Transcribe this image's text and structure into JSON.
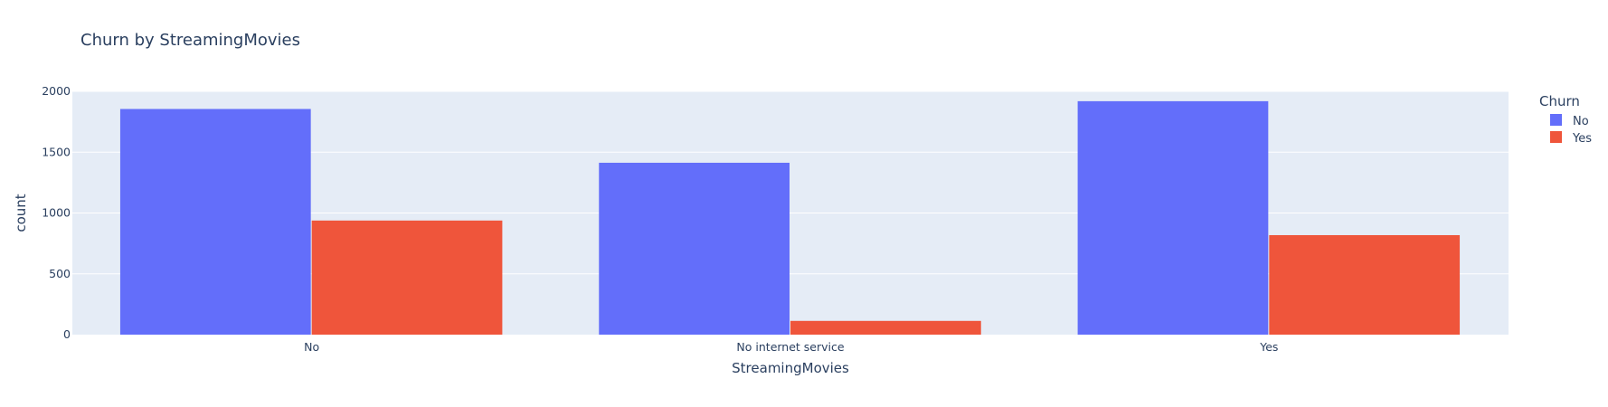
{
  "chart_data": {
    "type": "bar",
    "title": "Churn by StreamingMovies",
    "xlabel": "StreamingMovies",
    "ylabel": "count",
    "categories": [
      "No",
      "No internet service",
      "Yes"
    ],
    "series": [
      {
        "name": "No",
        "values": [
          1855,
          1413,
          1919
        ],
        "color": "#636efa"
      },
      {
        "name": "Yes",
        "values": [
          938,
          113,
          818
        ],
        "color": "#ef553b"
      }
    ],
    "ylim": [
      0,
      2000
    ],
    "yticks": [
      0,
      500,
      1000,
      1500,
      2000
    ],
    "grid": true,
    "legend": {
      "title": "Churn",
      "placement": "top-right"
    },
    "plot_background": "#e5ecf6"
  }
}
